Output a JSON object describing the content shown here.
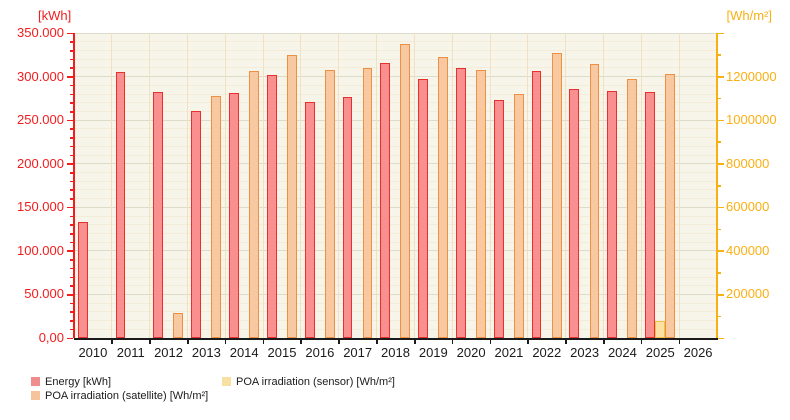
{
  "chart_data": {
    "type": "bar",
    "title": "",
    "categories": [
      "2010",
      "2011",
      "2012",
      "2013",
      "2014",
      "2015",
      "2016",
      "2017",
      "2018",
      "2019",
      "2020",
      "2021",
      "2022",
      "2023",
      "2024",
      "2025",
      "2026"
    ],
    "series": [
      {
        "key": "energy",
        "name": "Energy [kWh]",
        "axis": "left",
        "unit": "kWh",
        "fill": "#f9908f",
        "border": "#e8312f",
        "values": [
          133000,
          305000,
          282000,
          261000,
          281000,
          302000,
          271000,
          277000,
          316000,
          297000,
          310000,
          273000,
          306000,
          286000,
          283000,
          282000,
          null
        ]
      },
      {
        "key": "sensor",
        "name": "POA irradiation (sensor) [Wh/m²]",
        "axis": "right",
        "unit": "Wh/m²",
        "fill": "#fae3a2",
        "border": "#eec14f",
        "values": [
          null,
          null,
          null,
          null,
          null,
          null,
          null,
          null,
          null,
          null,
          null,
          null,
          null,
          null,
          null,
          80000,
          null
        ]
      },
      {
        "key": "satellite",
        "name": "POA irradiation (satellite) [Wh/m²]",
        "axis": "right",
        "unit": "Wh/m²",
        "fill": "#f8c9a0",
        "border": "#ee9044",
        "values": [
          null,
          null,
          115000,
          1110000,
          1225000,
          1300000,
          1230000,
          1240000,
          1350000,
          1290000,
          1230000,
          1120000,
          1310000,
          1260000,
          1190000,
          1210000,
          null
        ]
      }
    ],
    "axes": {
      "left": {
        "title": "[kWh]",
        "color": "#f21d1d",
        "min": 0,
        "max": 350000,
        "major_step": 50000,
        "minor_step": 10000,
        "tick_labels": [
          "0,00",
          "50.000",
          "100.000",
          "150.000",
          "200.000",
          "250.000",
          "300.000",
          "350.000"
        ]
      },
      "right": {
        "title": "[Wh/m²]",
        "color": "#f9b012",
        "min": 0,
        "max": 1400000,
        "major_step": 200000,
        "minor_step": 100000,
        "tick_labels": [
          "200000",
          "400000",
          "600000",
          "800000",
          "1000000",
          "1200000"
        ]
      },
      "bottom": {
        "color": "#1b1b1b"
      }
    },
    "grid": {
      "plot_bg": "#f7f5ea",
      "h_major": "#dcdcc9",
      "h_minor": "#f3ecd9",
      "v_year": "#efe2c4"
    },
    "legend": [
      {
        "label": "Energy [kWh]",
        "color": "#f08c8c"
      },
      {
        "label": "POA irradiation (satellite) [Wh/m²]",
        "color": "#f5c39c"
      },
      {
        "label": "POA irradiation (sensor) [Wh/m²]",
        "color": "#f8dfa2"
      }
    ]
  }
}
